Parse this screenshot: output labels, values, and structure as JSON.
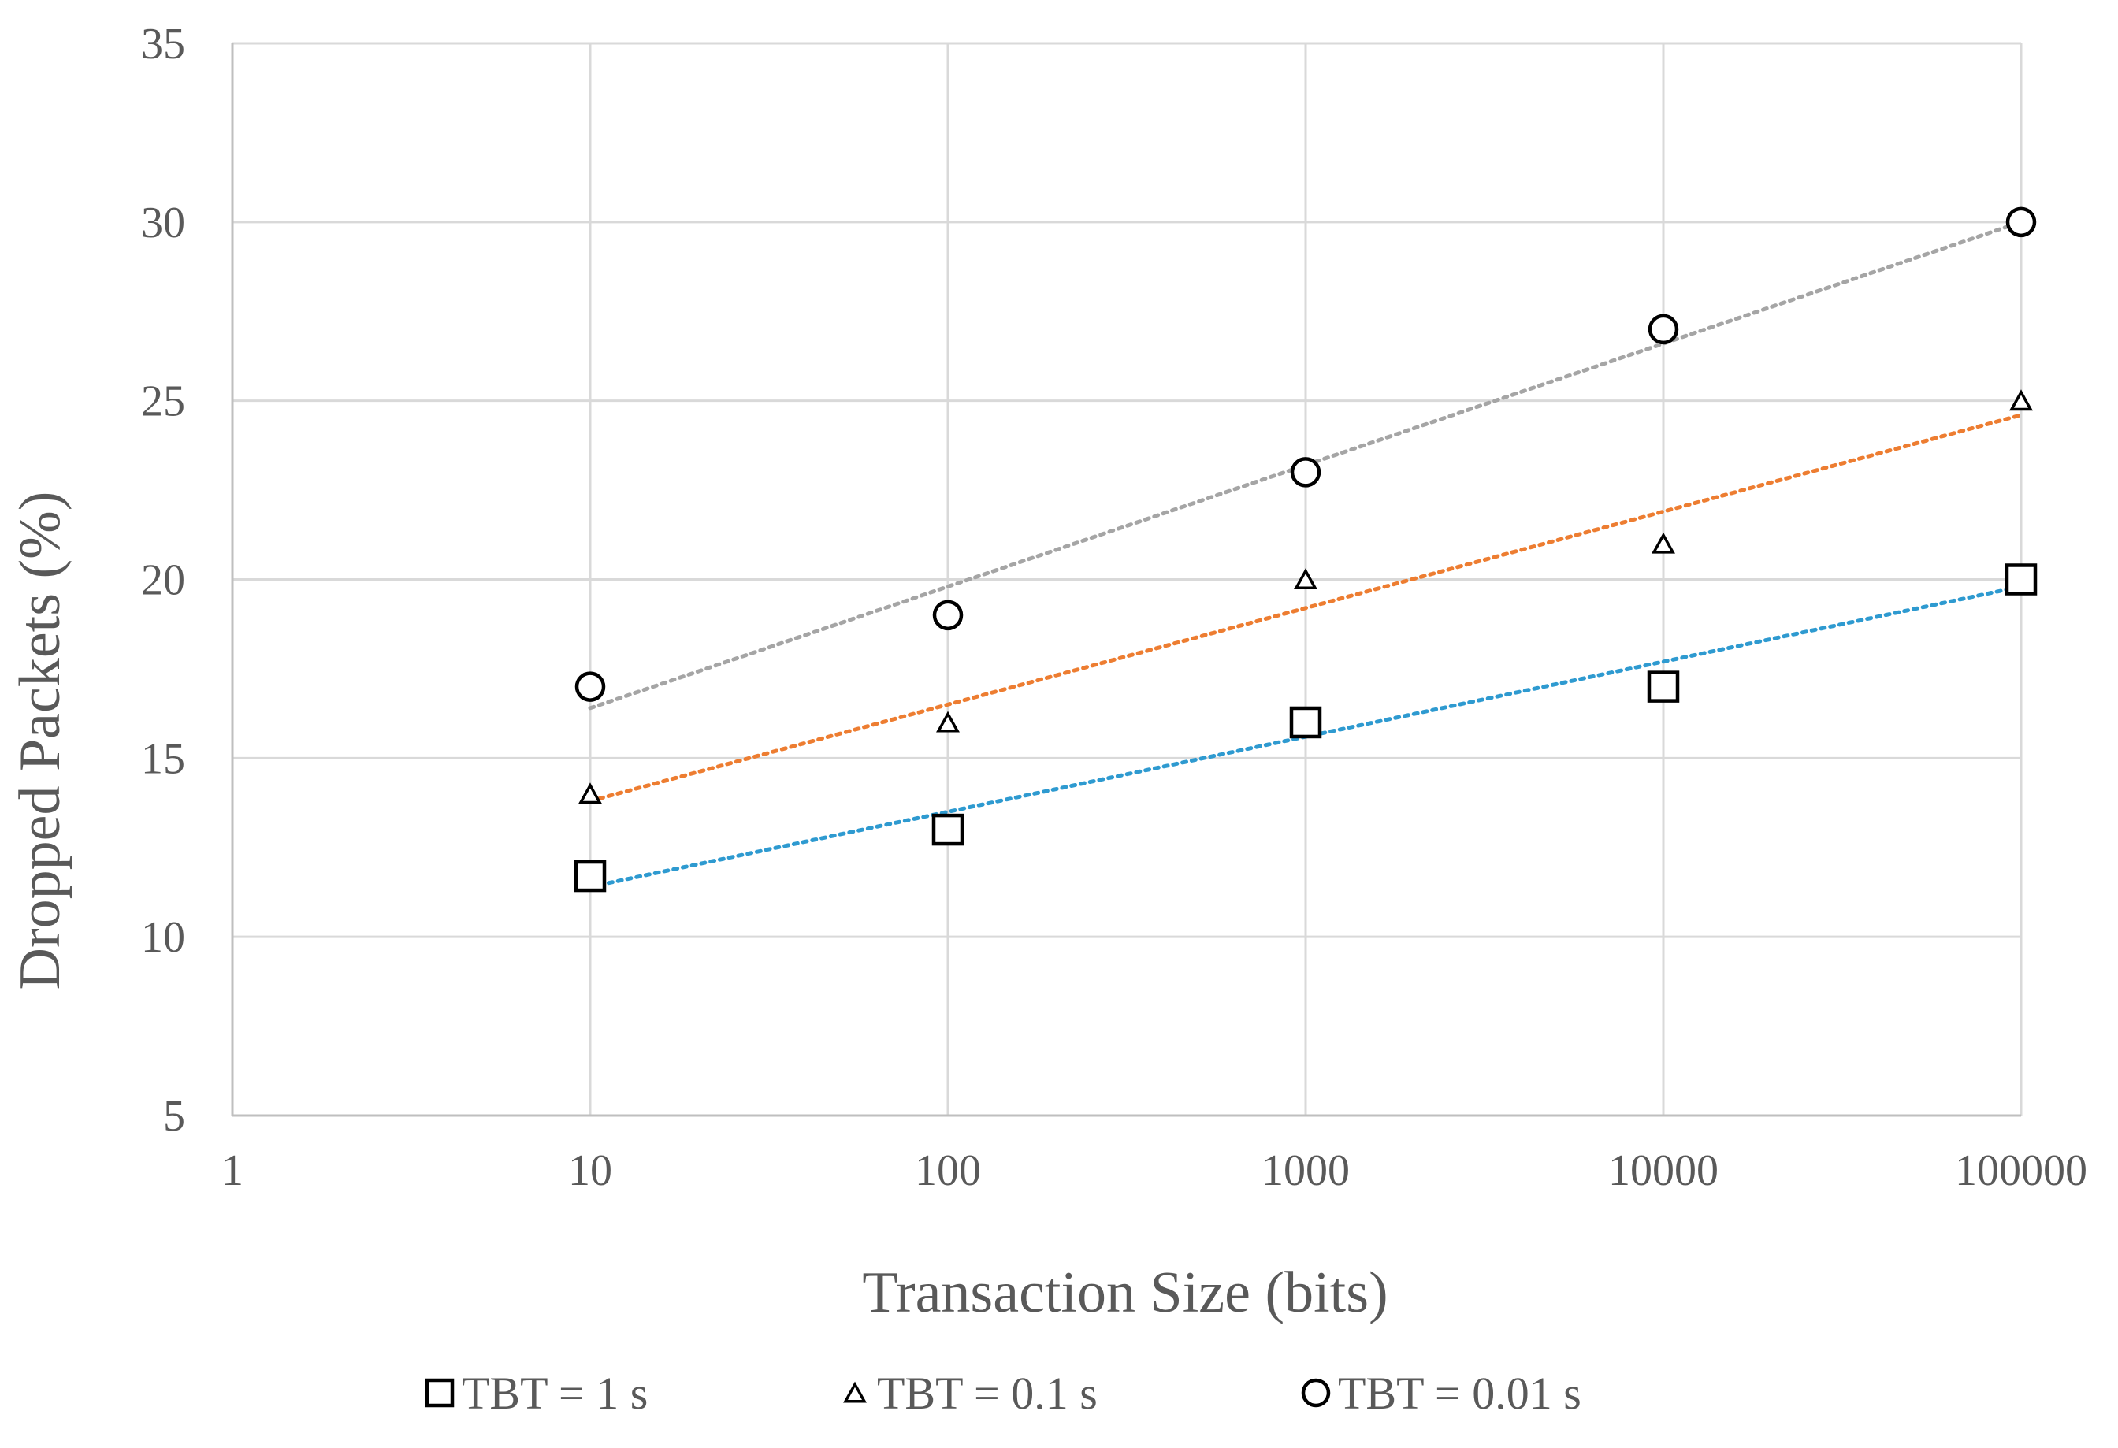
{
  "chart_data": {
    "type": "scatter",
    "xlabel": "Transaction Size (bits)",
    "ylabel": "Dropped Packets (%)",
    "x_scale": "log",
    "xlim": [
      1,
      100000
    ],
    "ylim": [
      5,
      35
    ],
    "x_ticks": [
      "1",
      "10",
      "100",
      "1000",
      "10000",
      "100000"
    ],
    "y_ticks": [
      "5",
      "10",
      "15",
      "20",
      "25",
      "30",
      "35"
    ],
    "grid": true,
    "legend_position": "bottom",
    "series": [
      {
        "name": "TBT = 1 s",
        "marker": "square",
        "trendline_color": "#2e9ad0",
        "x": [
          10,
          100,
          1000,
          10000,
          100000
        ],
        "y": [
          11.7,
          13,
          16,
          17,
          20
        ],
        "trendline": {
          "type": "logarithmic",
          "y_start": 11.4,
          "y_end": 19.8
        }
      },
      {
        "name": "TBT = 0.1 s",
        "marker": "triangle",
        "trendline_color": "#ed7d31",
        "x": [
          10,
          100,
          1000,
          10000,
          100000
        ],
        "y": [
          14,
          16,
          20,
          21,
          25
        ],
        "trendline": {
          "type": "logarithmic",
          "y_start": 13.8,
          "y_end": 24.6
        }
      },
      {
        "name": "TBT = 0.01 s",
        "marker": "circle",
        "trendline_color": "#a5a5a5",
        "x": [
          10,
          100,
          1000,
          10000,
          100000
        ],
        "y": [
          17,
          19,
          23,
          27,
          30
        ],
        "trendline": {
          "type": "logarithmic",
          "y_start": 16.4,
          "y_end": 30
        }
      }
    ]
  }
}
